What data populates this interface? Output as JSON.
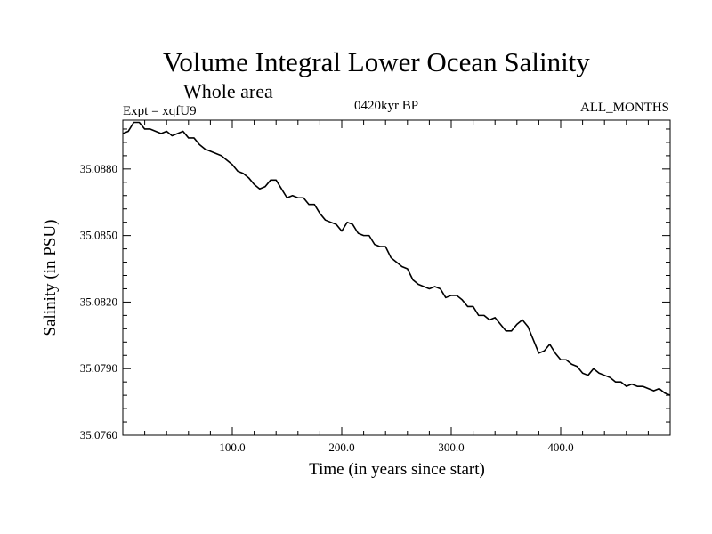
{
  "header": {
    "title": "Volume Integral Lower Ocean Salinity",
    "subtitle": "Whole area",
    "experiment": "Expt = xqfU9",
    "period": "0420kyr BP",
    "months": "ALL_MONTHS"
  },
  "chart_data": {
    "type": "line",
    "title": "Volume Integral Lower Ocean Salinity",
    "subtitle": "Whole area",
    "xlabel": "Time (in years since start)",
    "ylabel": "Salinity (in PSU)",
    "xlim": [
      0,
      500
    ],
    "ylim": [
      35.076,
      35.0902
    ],
    "x_ticks": [
      100,
      200,
      300,
      400
    ],
    "x_tick_labels": [
      "100.0",
      "200.0",
      "300.0",
      "400.0"
    ],
    "y_ticks": [
      35.076,
      35.079,
      35.082,
      35.085,
      35.088
    ],
    "y_tick_labels": [
      "35.0760",
      "35.0790",
      "35.0820",
      "35.0850",
      "35.0880"
    ],
    "grid": false,
    "series": [
      {
        "name": "Salinity",
        "x": [
          0,
          5,
          10,
          15,
          20,
          25,
          30,
          35,
          40,
          45,
          50,
          55,
          60,
          65,
          70,
          75,
          80,
          85,
          90,
          95,
          100,
          105,
          110,
          115,
          120,
          125,
          130,
          135,
          140,
          145,
          150,
          155,
          160,
          165,
          170,
          175,
          180,
          185,
          190,
          195,
          200,
          205,
          210,
          215,
          220,
          225,
          230,
          235,
          240,
          245,
          250,
          255,
          260,
          265,
          270,
          275,
          280,
          285,
          290,
          295,
          300,
          305,
          310,
          315,
          320,
          325,
          330,
          335,
          340,
          345,
          350,
          355,
          360,
          365,
          370,
          375,
          380,
          385,
          390,
          395,
          400,
          405,
          410,
          415,
          420,
          425,
          430,
          435,
          440,
          445,
          450,
          455,
          460,
          465,
          470,
          475,
          480,
          485,
          490,
          495,
          500
        ],
        "y": [
          35.0896,
          35.0897,
          35.0901,
          35.0901,
          35.0898,
          35.0898,
          35.0897,
          35.0896,
          35.0897,
          35.0895,
          35.0896,
          35.0897,
          35.0894,
          35.0894,
          35.0891,
          35.0889,
          35.0888,
          35.0887,
          35.0886,
          35.0884,
          35.0882,
          35.0879,
          35.0878,
          35.0876,
          35.0873,
          35.0871,
          35.0872,
          35.0875,
          35.0875,
          35.0871,
          35.0867,
          35.0868,
          35.0867,
          35.0867,
          35.0864,
          35.0864,
          35.086,
          35.0857,
          35.0856,
          35.0855,
          35.0852,
          35.0856,
          35.0855,
          35.0851,
          35.085,
          35.085,
          35.0846,
          35.0845,
          35.0845,
          35.084,
          35.0838,
          35.0836,
          35.0835,
          35.083,
          35.0828,
          35.0827,
          35.0826,
          35.0827,
          35.0826,
          35.0822,
          35.0823,
          35.0823,
          35.0821,
          35.0818,
          35.0818,
          35.0814,
          35.0814,
          35.0812,
          35.0813,
          35.081,
          35.0807,
          35.0807,
          35.081,
          35.0812,
          35.0809,
          35.0803,
          35.0797,
          35.0798,
          35.0801,
          35.0797,
          35.0794,
          35.0794,
          35.0792,
          35.0791,
          35.0788,
          35.0787,
          35.079,
          35.0788,
          35.0787,
          35.0786,
          35.0784,
          35.0784,
          35.0782,
          35.0783,
          35.0782,
          35.0782,
          35.0781,
          35.078,
          35.0781,
          35.0779,
          35.0778
        ]
      }
    ]
  }
}
